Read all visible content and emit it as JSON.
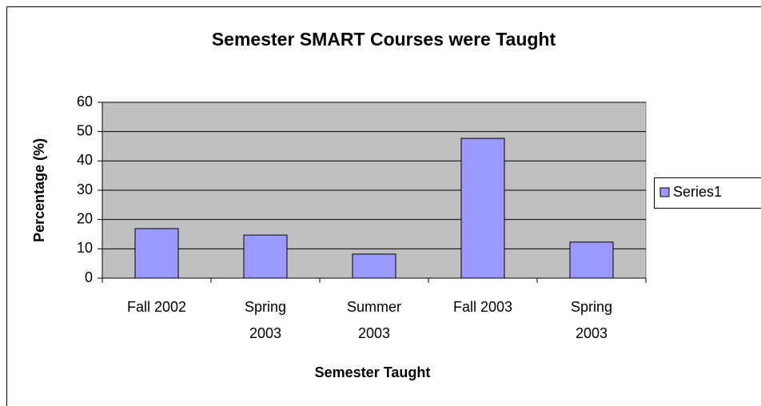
{
  "chart_data": {
    "type": "bar",
    "title": "Semester SMART Courses were Taught",
    "x_label": "Semester Taught",
    "y_label": "Percentage (%)",
    "categories": [
      "Fall 2002",
      "Spring\n2003",
      "Summer\n2003",
      "Fall 2003",
      "Spring\n2003"
    ],
    "series": [
      {
        "name": "Series1",
        "color": "#9999ff",
        "values": [
          16.9,
          14.7,
          8.2,
          47.7,
          12.3
        ]
      }
    ],
    "ylim": [
      0,
      60
    ],
    "yticks": [
      0,
      10,
      20,
      30,
      40,
      50,
      60
    ],
    "grid": true,
    "legend": "right"
  }
}
